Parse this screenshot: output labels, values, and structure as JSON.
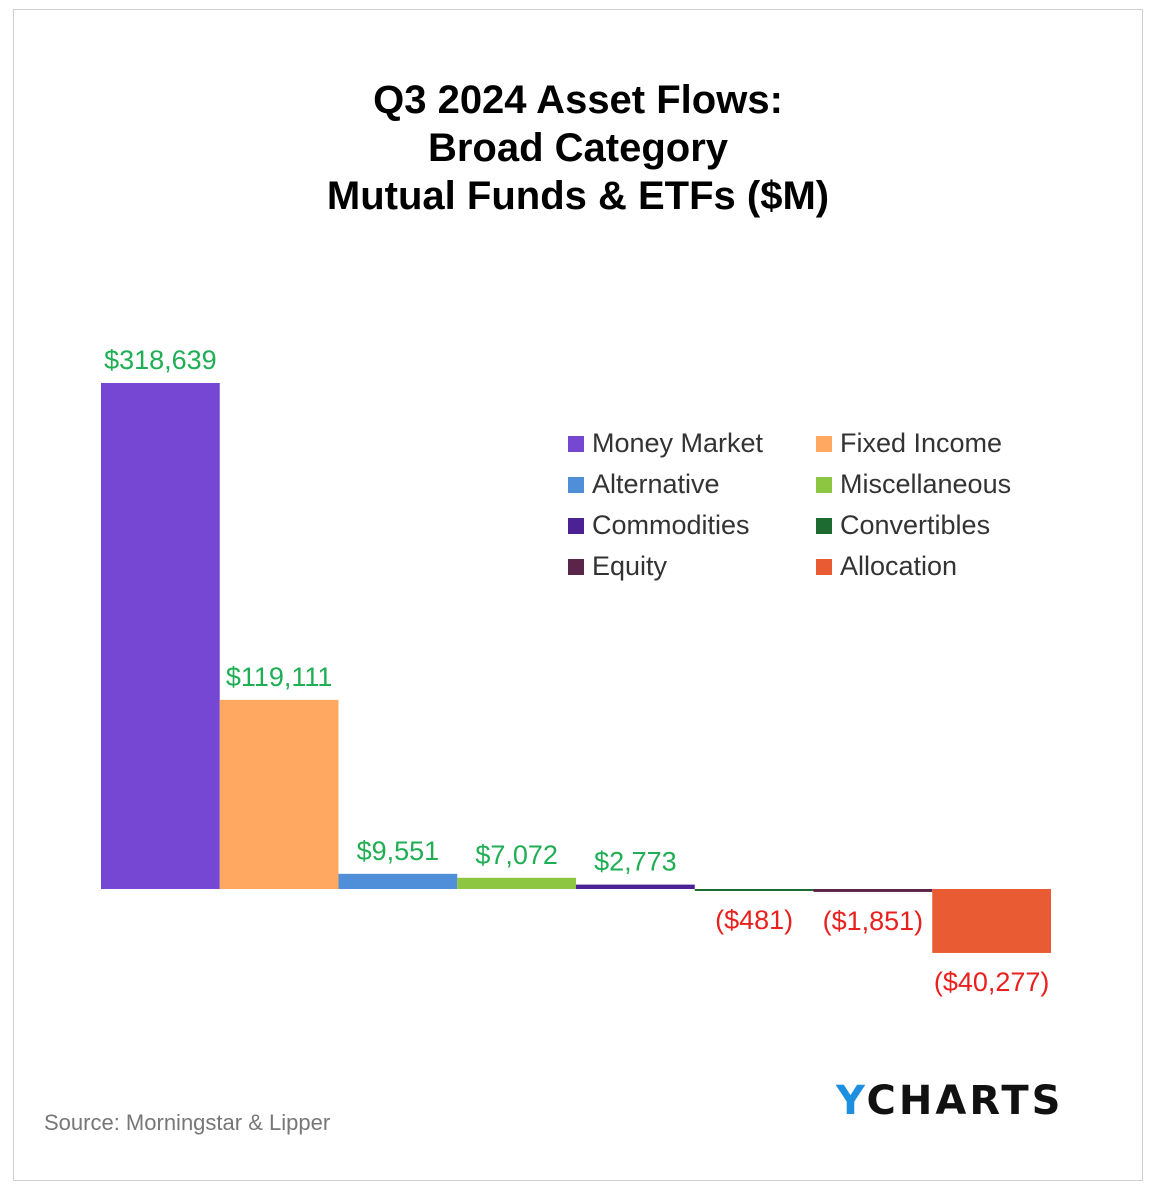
{
  "chart_data": {
    "type": "bar",
    "title_lines": [
      "Q3 2024 Asset Flows:",
      "Broad Category",
      "Mutual Funds & ETFs ($M)"
    ],
    "categories": [
      "Money Market",
      "Fixed Income",
      "Alternative",
      "Miscellaneous",
      "Commodities",
      "Convertibles",
      "Equity",
      "Allocation"
    ],
    "values": [
      318639,
      119111,
      9551,
      7072,
      2773,
      -481,
      -1851,
      -40277
    ],
    "data_labels": [
      "$318,639",
      "$119,111",
      "$9,551",
      "$7,072",
      "$2,773",
      "($481)",
      "($1,851)",
      "($40,277)"
    ],
    "colors": [
      "#7647d3",
      "#ffa861",
      "#4f8ed8",
      "#8dc741",
      "#4b2193",
      "#1e6b32",
      "#5a2549",
      "#e95b33"
    ],
    "positive_label_color": "#1fae54",
    "negative_label_color": "#e8211f",
    "legend_position": "top-right",
    "grid": false,
    "xlabel": "",
    "ylabel": ""
  },
  "source_text": "Source: Morningstar & Lipper",
  "logo": {
    "prefix": "Y",
    "rest": "CHARTS",
    "prefix_color": "#1d8fe0"
  }
}
